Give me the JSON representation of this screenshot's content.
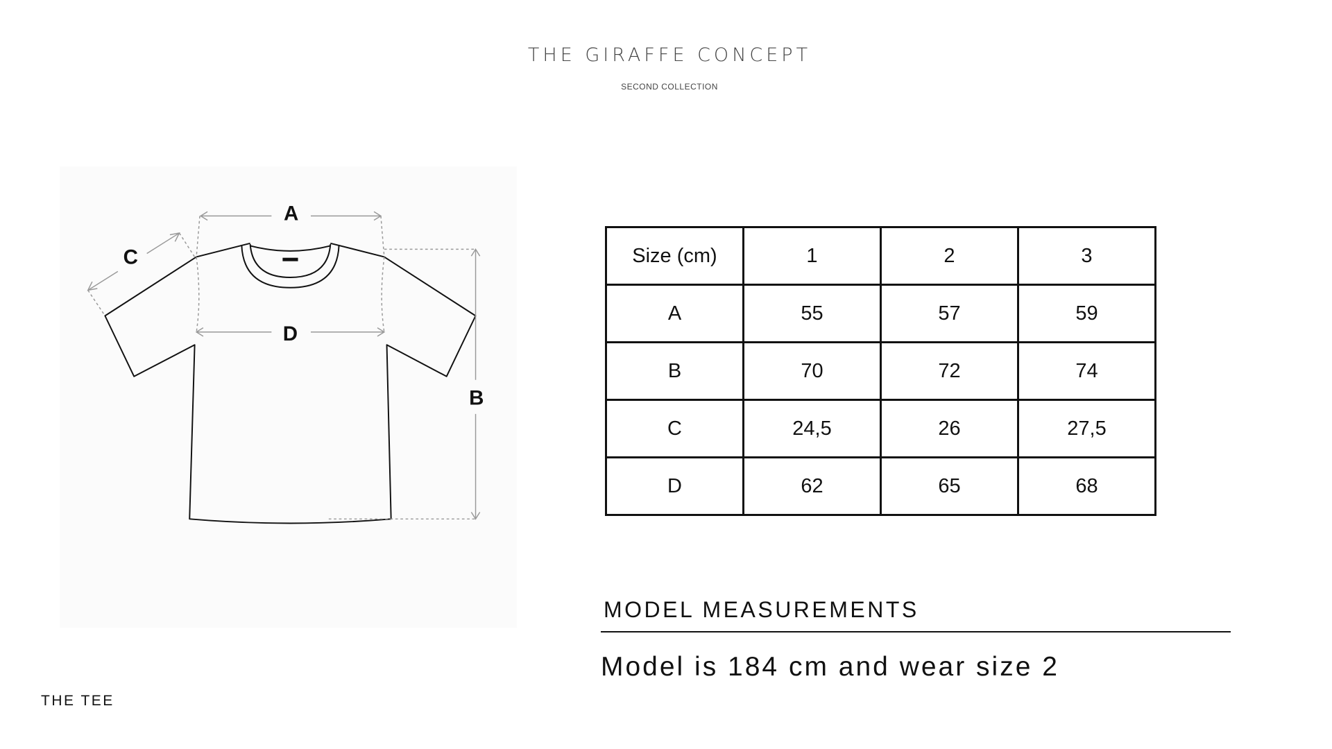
{
  "header": {
    "brand": "THE GIRAFFE CONCEPT",
    "subtitle": "SECOND COLLECTION"
  },
  "diagram": {
    "labels": {
      "a": "A",
      "b": "B",
      "c": "C",
      "d": "D"
    }
  },
  "size_table": {
    "header": [
      "Size (cm)",
      "1",
      "2",
      "3"
    ],
    "rows": [
      [
        "A",
        "55",
        "57",
        "59"
      ],
      [
        "B",
        "70",
        "72",
        "74"
      ],
      [
        "C",
        "24,5",
        "26",
        "27,5"
      ],
      [
        "D",
        "62",
        "65",
        "68"
      ]
    ]
  },
  "model": {
    "title": "MODEL MEASUREMENTS",
    "text": "Model is 184 cm and wear size 2"
  },
  "product": {
    "name": "THE TEE"
  }
}
